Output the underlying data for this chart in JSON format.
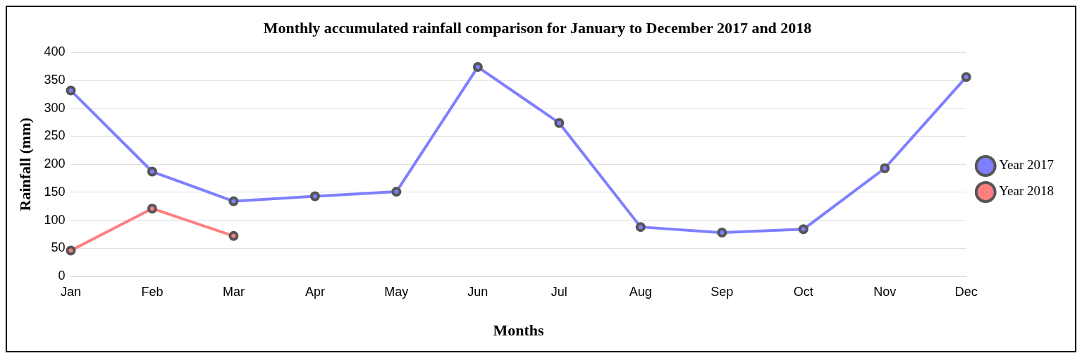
{
  "chart_data": {
    "type": "line",
    "title": "Monthly accumulated rainfall comparison for January to December 2017 and 2018",
    "xlabel": "Months",
    "ylabel": "Rainfall (mm)",
    "categories": [
      "Jan",
      "Feb",
      "Mar",
      "Apr",
      "May",
      "Jun",
      "Jul",
      "Aug",
      "Sep",
      "Oct",
      "Nov",
      "Dec"
    ],
    "series": [
      {
        "name": "Year 2017",
        "color": "#7f7fff",
        "values": [
          332,
          187,
          134,
          143,
          151,
          374,
          274,
          88,
          78,
          84,
          193,
          356
        ]
      },
      {
        "name": "Year 2018",
        "color": "#ff7f7f",
        "values": [
          46,
          121,
          72,
          null,
          null,
          null,
          null,
          null,
          null,
          null,
          null,
          null
        ]
      }
    ],
    "ylim": [
      0,
      400
    ],
    "yticks": [
      0,
      50,
      100,
      150,
      200,
      250,
      300,
      350,
      400
    ],
    "grid": "y",
    "legend": "right",
    "marker": "circle",
    "line_style": "solid"
  }
}
